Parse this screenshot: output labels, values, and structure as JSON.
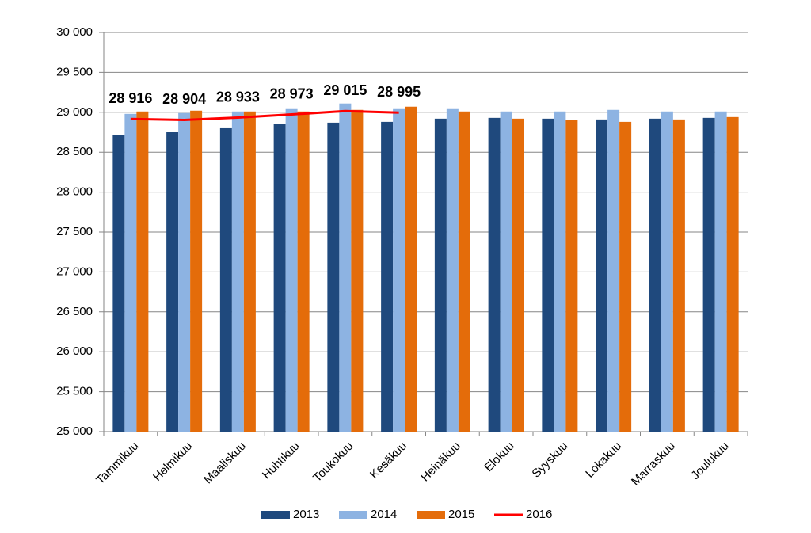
{
  "chart_data": {
    "type": "bar",
    "categories": [
      "Tammikuu",
      "Helmikuu",
      "Maaliskuu",
      "Huhtikuu",
      "Toukokuu",
      "Kesäkuu",
      "Heinäkuu",
      "Elokuu",
      "Syyskuu",
      "Lokakuu",
      "Marraskuu",
      "Joulukuu"
    ],
    "series": [
      {
        "name": "2013",
        "color": "#1f497d",
        "type": "bar",
        "values": [
          28720,
          28750,
          28810,
          28850,
          28870,
          28880,
          28920,
          28930,
          28920,
          28910,
          28920,
          28930
        ]
      },
      {
        "name": "2014",
        "color": "#8db3e2",
        "type": "bar",
        "values": [
          28980,
          28990,
          29010,
          29050,
          29110,
          29050,
          29050,
          29010,
          29010,
          29030,
          29010,
          29010
        ]
      },
      {
        "name": "2015",
        "color": "#e46c0a",
        "type": "bar",
        "values": [
          29010,
          29020,
          29010,
          29010,
          29030,
          29070,
          29010,
          28920,
          28900,
          28880,
          28910,
          28940
        ]
      },
      {
        "name": "2016",
        "color": "#ff0000",
        "type": "line",
        "values": [
          28916,
          28904,
          28933,
          28973,
          29015,
          28995,
          null,
          null,
          null,
          null,
          null,
          null
        ],
        "value_labels": [
          "28 916",
          "28 904",
          "28 933",
          "28 973",
          "29 015",
          "28 995",
          null,
          null,
          null,
          null,
          null,
          null
        ]
      }
    ],
    "ylim": [
      25000,
      30000
    ],
    "yticks": [
      {
        "value": 25000,
        "label": "25 000"
      },
      {
        "value": 25500,
        "label": "25 500"
      },
      {
        "value": 26000,
        "label": "26 000"
      },
      {
        "value": 26500,
        "label": "26 500"
      },
      {
        "value": 27000,
        "label": "27 000"
      },
      {
        "value": 27500,
        "label": "27 500"
      },
      {
        "value": 28000,
        "label": "28 000"
      },
      {
        "value": 28500,
        "label": "28 500"
      },
      {
        "value": 29000,
        "label": "29 000"
      },
      {
        "value": 29500,
        "label": "29 500"
      },
      {
        "value": 30000,
        "label": "30 000"
      }
    ],
    "grid": true,
    "legend": "bottom"
  }
}
